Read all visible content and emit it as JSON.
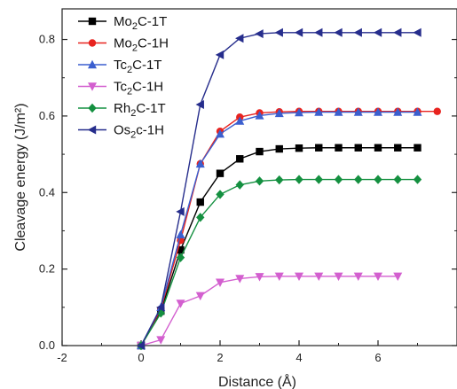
{
  "chart_data": {
    "type": "line",
    "xlabel": "Distance (Å)",
    "ylabel": "Cleavage energy (J/m²)",
    "xlim": [
      -2,
      8
    ],
    "ylim": [
      0,
      0.88
    ],
    "x_ticks": [
      "-2",
      "0",
      "2",
      "4",
      "6"
    ],
    "y_ticks": [
      "0.0",
      "0.2",
      "0.4",
      "0.6",
      "0.8"
    ],
    "legend_position": "top-left",
    "grid": false,
    "series": [
      {
        "name": "Mo2C-1T",
        "label_parts": [
          "Mo",
          "2",
          "C-1T"
        ],
        "color": "#000000",
        "marker": "square",
        "x": [
          0,
          0.5,
          1,
          1.5,
          2,
          2.5,
          3,
          3.5,
          4,
          4.5,
          5,
          5.5,
          6,
          6.5,
          7
        ],
        "y": [
          0,
          0.09,
          0.25,
          0.375,
          0.45,
          0.488,
          0.507,
          0.514,
          0.516,
          0.517,
          0.517,
          0.517,
          0.517,
          0.517,
          0.517
        ]
      },
      {
        "name": "Mo2C-1H",
        "label_parts": [
          "Mo",
          "2",
          "C-1H"
        ],
        "color": "#e8231f",
        "marker": "circle",
        "x": [
          0,
          0.5,
          1,
          1.5,
          2,
          2.5,
          3,
          3.5,
          4,
          4.5,
          5,
          5.5,
          6,
          6.5,
          7,
          7.5
        ],
        "y": [
          0,
          0.095,
          0.275,
          0.475,
          0.56,
          0.597,
          0.608,
          0.611,
          0.612,
          0.612,
          0.612,
          0.612,
          0.612,
          0.612,
          0.612,
          0.612
        ]
      },
      {
        "name": "Tc2C-1T",
        "label_parts": [
          "Tc",
          "2",
          "C-1T"
        ],
        "color": "#3b5fcf",
        "marker": "triangle-up",
        "x": [
          0,
          0.5,
          1,
          1.5,
          2,
          2.5,
          3,
          3.5,
          4,
          4.5,
          5,
          5.5,
          6,
          6.5,
          7
        ],
        "y": [
          0,
          0.1,
          0.29,
          0.475,
          0.553,
          0.587,
          0.601,
          0.607,
          0.609,
          0.61,
          0.61,
          0.61,
          0.61,
          0.61,
          0.61
        ]
      },
      {
        "name": "Tc2C-1H",
        "label_parts": [
          "Tc",
          "2",
          "C-1H"
        ],
        "color": "#d35fcf",
        "marker": "triangle-down",
        "x": [
          0,
          0.5,
          1,
          1.5,
          2,
          2.5,
          3,
          3.5,
          4,
          4.5,
          5,
          5.5,
          6,
          6.5
        ],
        "y": [
          0,
          0.015,
          0.11,
          0.13,
          0.165,
          0.175,
          0.18,
          0.181,
          0.181,
          0.181,
          0.181,
          0.181,
          0.181,
          0.181
        ]
      },
      {
        "name": "Rh2C-1T",
        "label_parts": [
          "Rh",
          "2",
          "C-1T"
        ],
        "color": "#149040",
        "marker": "diamond",
        "x": [
          0,
          0.5,
          1,
          1.5,
          2,
          2.5,
          3,
          3.5,
          4,
          4.5,
          5,
          5.5,
          6,
          6.5,
          7
        ],
        "y": [
          0,
          0.085,
          0.23,
          0.335,
          0.395,
          0.42,
          0.43,
          0.433,
          0.434,
          0.434,
          0.434,
          0.434,
          0.434,
          0.434,
          0.434
        ]
      },
      {
        "name": "Os2c-1H",
        "label_parts": [
          "Os",
          "2",
          "c-1H"
        ],
        "color": "#262d8c",
        "marker": "triangle-left",
        "x": [
          0,
          0.5,
          1,
          1.5,
          2,
          2.5,
          3,
          3.5,
          4,
          4.5,
          5,
          5.5,
          6,
          6.5,
          7
        ],
        "y": [
          0,
          0.1,
          0.35,
          0.63,
          0.76,
          0.803,
          0.815,
          0.818,
          0.818,
          0.818,
          0.818,
          0.818,
          0.818,
          0.818,
          0.818
        ]
      }
    ]
  }
}
